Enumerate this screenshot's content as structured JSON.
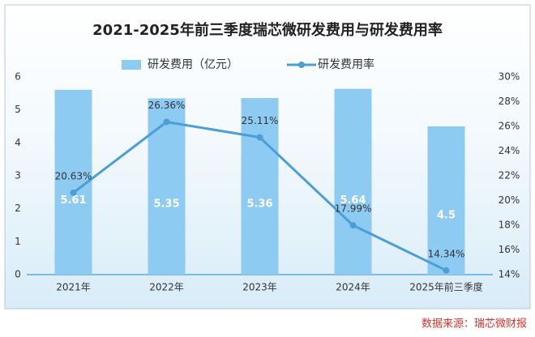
{
  "chart_data": {
    "type": "combo",
    "title": "2021-2025年前三季度瑞芯微研发费用与研发费用率",
    "categories": [
      "2021年",
      "2022年",
      "2023年",
      "2024年",
      "2025年前三季度"
    ],
    "series": [
      {
        "name": "研发费用（亿元）",
        "type": "bar",
        "color": "#8ecbf2",
        "values": [
          5.61,
          5.35,
          5.36,
          5.64,
          4.5
        ]
      },
      {
        "name": "研发费用率",
        "type": "line",
        "axis": "y2",
        "color": "#4a9fd6",
        "values": [
          20.63,
          26.36,
          25.11,
          17.99,
          14.34
        ],
        "value_labels": [
          "20.63%",
          "26.36%",
          "25.11%",
          "17.99%",
          "14.34%"
        ]
      }
    ],
    "ylim": [
      0,
      6
    ],
    "yticks": [
      0,
      1,
      2,
      3,
      4,
      5,
      6
    ],
    "y2lim": [
      14,
      30
    ],
    "y2ticks": [
      {
        "value": 14,
        "label": "14%"
      },
      {
        "value": 16,
        "label": "16%"
      },
      {
        "value": 18,
        "label": "18%"
      },
      {
        "value": 20,
        "label": "20%"
      },
      {
        "value": 22,
        "label": "22%"
      },
      {
        "value": 24,
        "label": "24%"
      },
      {
        "value": 26,
        "label": "26%"
      },
      {
        "value": 28,
        "label": "28%"
      },
      {
        "value": 30,
        "label": "30%"
      }
    ],
    "grid": false,
    "source": "数据来源：瑞芯微财报"
  }
}
